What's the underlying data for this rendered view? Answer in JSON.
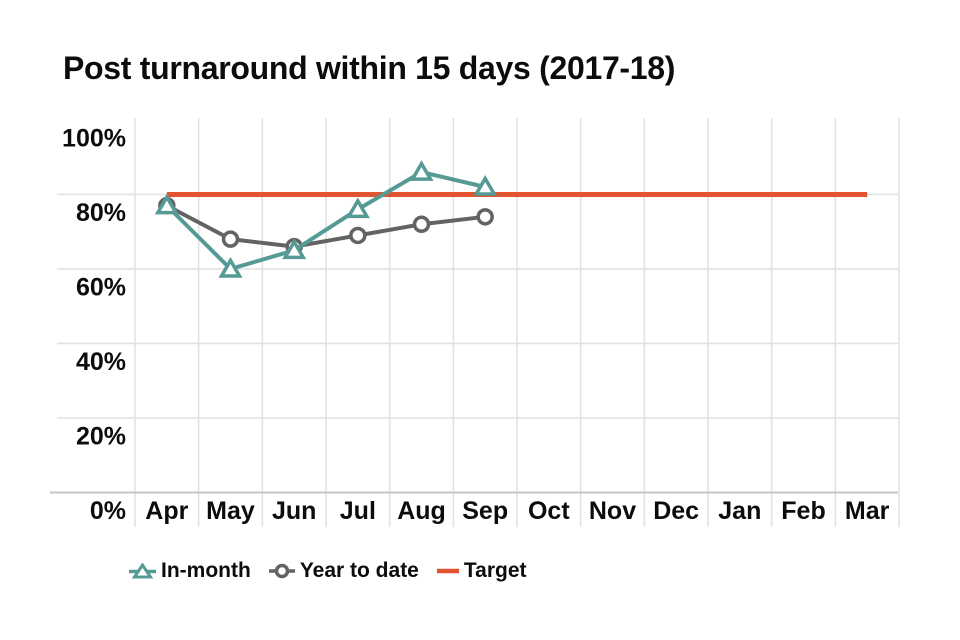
{
  "title": "Post turnaround within 15 days (2017-18)",
  "legend": {
    "items": [
      {
        "label": "In-month",
        "marker": "triangle",
        "color": "#559a95"
      },
      {
        "label": "Year to date",
        "marker": "circle",
        "color": "#636363"
      },
      {
        "label": "Target",
        "marker": "line",
        "color": "#e2542f"
      }
    ]
  },
  "chart_data": {
    "type": "line",
    "title": "Post turnaround within 15 days (2017-18)",
    "categories": [
      "Apr",
      "May",
      "Jun",
      "Jul",
      "Aug",
      "Sep",
      "Oct",
      "Nov",
      "Dec",
      "Jan",
      "Feb",
      "Mar"
    ],
    "y_tick_labels": [
      "100%",
      "80%",
      "60%",
      "40%",
      "20%",
      "0%"
    ],
    "y_tick_values": [
      100,
      80,
      60,
      40,
      20,
      0
    ],
    "ylim": [
      0,
      100
    ],
    "grid": true,
    "legend_position": "bottom",
    "series": [
      {
        "name": "In-month",
        "marker": "triangle",
        "color": "#559a95",
        "values": [
          77,
          60,
          65,
          76,
          86,
          82,
          null,
          null,
          null,
          null,
          null,
          null
        ]
      },
      {
        "name": "Year to date",
        "marker": "circle",
        "color": "#636363",
        "values": [
          77,
          68,
          66,
          69,
          72,
          74,
          null,
          null,
          null,
          null,
          null,
          null
        ]
      }
    ],
    "target": {
      "name": "Target",
      "value": 80,
      "color": "#e2542f",
      "from_category": "Apr",
      "to_category": "Mar"
    }
  },
  "colors": {
    "text": "#0b0c0c",
    "gridline": "#e2e2e2",
    "axis_line": "#c4c4c4",
    "background": "#ffffff"
  }
}
